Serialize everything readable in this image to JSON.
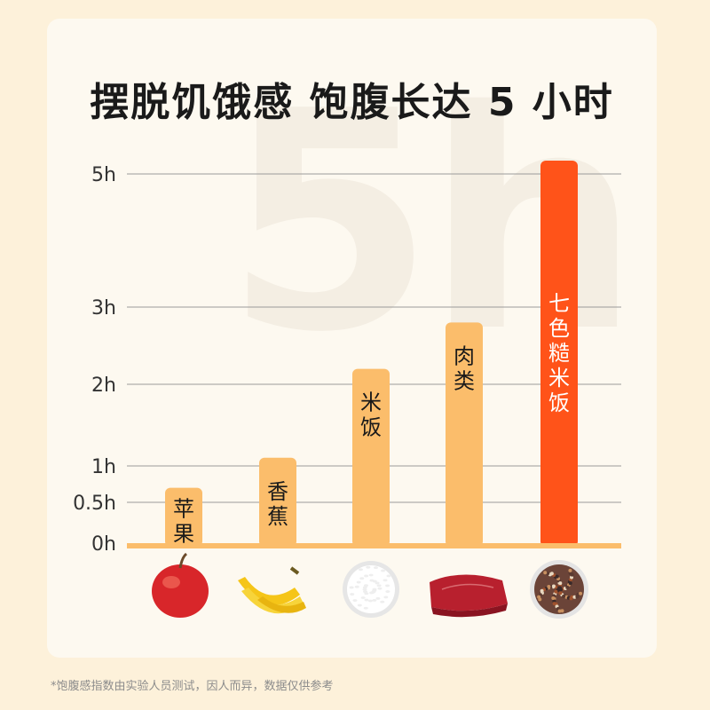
{
  "title": "摆脱饥饿感 饱腹长达 5 小时",
  "watermark": "5h",
  "footnote": "*饱腹感指数由实验人员测试，因人而异，数据仅供参考",
  "colors": {
    "bar": "#fbbd6b",
    "highlight": "#ff5319",
    "baseline": "#fbbd6b",
    "grid": "#9a9a9a"
  },
  "chart_data": {
    "type": "bar",
    "categories": [
      "苹果",
      "香蕉",
      "米饭",
      "肉类",
      "七色糙米饭"
    ],
    "values": [
      0.7,
      1.1,
      2.2,
      2.8,
      5.2
    ],
    "highlight_index": 4,
    "y_ticks": [
      {
        "value": 0,
        "label": "0h"
      },
      {
        "value": 0.5,
        "label": "0.5h"
      },
      {
        "value": 1,
        "label": "1h"
      },
      {
        "value": 2,
        "label": "2h"
      },
      {
        "value": 3,
        "label": "3h"
      },
      {
        "value": 5,
        "label": "5h"
      }
    ],
    "ylim": [
      0,
      5
    ],
    "grid": true,
    "icons": [
      "apple-icon",
      "banana-icon",
      "rice-bowl-icon",
      "beef-steak-icon",
      "mixed-grain-rice-icon"
    ]
  }
}
